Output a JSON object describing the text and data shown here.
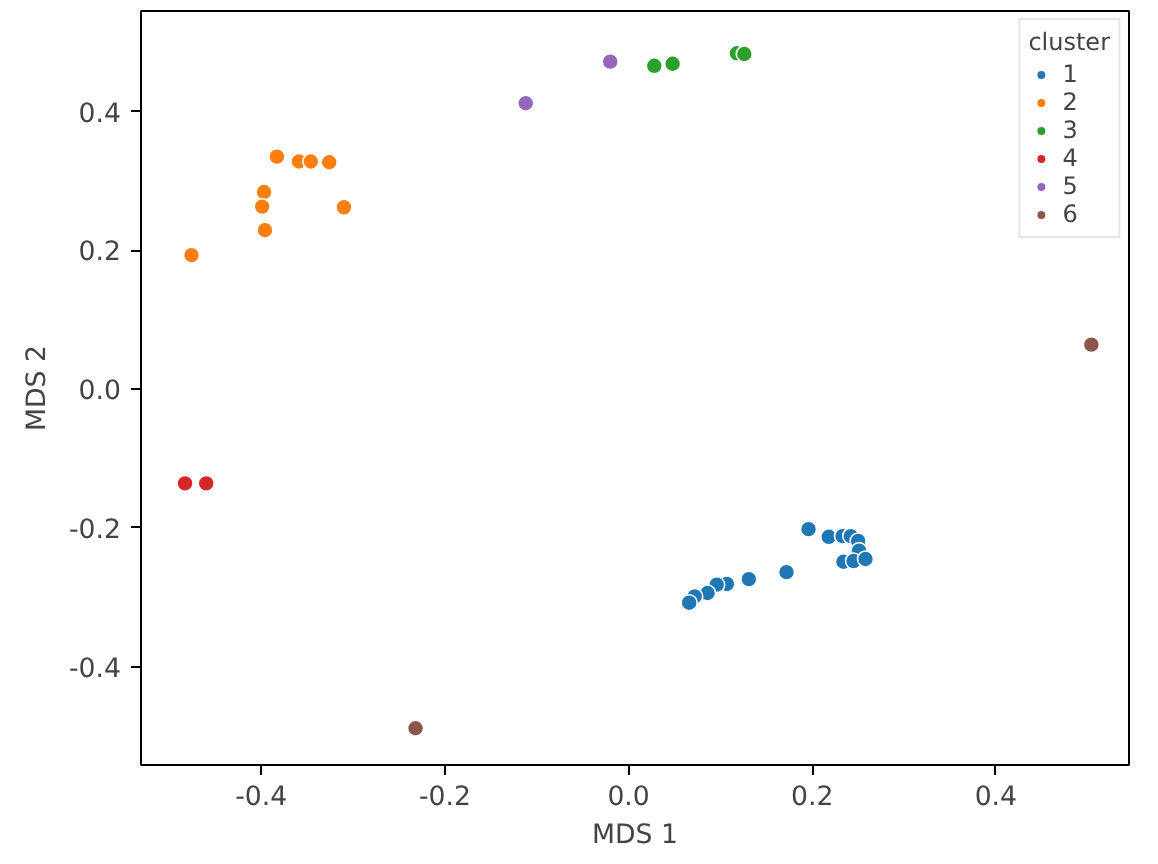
{
  "chart_data": {
    "type": "scatter",
    "xlabel": "MDS 1",
    "ylabel": "MDS 2",
    "legend_title": "cluster",
    "legend": "top right",
    "grid": false,
    "marker": "circle",
    "xlim": [
      -0.531,
      0.545
    ],
    "ylim": [
      -0.542,
      0.545
    ],
    "xticks": [
      -0.4,
      -0.2,
      {
        "value": 0,
        "label": "0.0"
      },
      0.2,
      0.4
    ],
    "yticks": [
      -0.4,
      -0.2,
      {
        "value": 0,
        "label": "0.0"
      },
      0.2,
      0.4
    ],
    "series": [
      {
        "name": "1",
        "color": "#1f77b4",
        "x": [
          0.196,
          0.218,
          0.233,
          0.242,
          0.25,
          0.251,
          0.234,
          0.245,
          0.258,
          0.172,
          0.131,
          0.107,
          0.096,
          0.086,
          0.072,
          0.066
        ],
        "values": [
          -0.202,
          -0.213,
          -0.212,
          -0.212,
          -0.219,
          -0.233,
          -0.249,
          -0.248,
          -0.245,
          -0.264,
          -0.274,
          -0.281,
          -0.282,
          -0.294,
          -0.299,
          -0.308
        ]
      },
      {
        "name": "2",
        "color": "#ff7f0e",
        "x": [
          -0.383,
          -0.359,
          -0.346,
          -0.326,
          -0.397,
          -0.399,
          -0.31,
          -0.396,
          -0.476
        ],
        "values": [
          0.335,
          0.328,
          0.328,
          0.327,
          0.284,
          0.263,
          0.262,
          0.229,
          0.193
        ]
      },
      {
        "name": "3",
        "color": "#2ca02c",
        "x": [
          0.028,
          0.048,
          0.118,
          0.126
        ],
        "values": [
          0.466,
          0.469,
          0.484,
          0.483
        ]
      },
      {
        "name": "4",
        "color": "#d62728",
        "x": [
          -0.483,
          -0.46
        ],
        "values": [
          -0.136,
          -0.136
        ]
      },
      {
        "name": "5",
        "color": "#9467bd",
        "x": [
          -0.02,
          -0.112
        ],
        "values": [
          0.472,
          0.412
        ]
      },
      {
        "name": "6",
        "color": "#8c564b",
        "x": [
          -0.232,
          0.504
        ],
        "values": [
          -0.489,
          0.064
        ]
      }
    ]
  }
}
